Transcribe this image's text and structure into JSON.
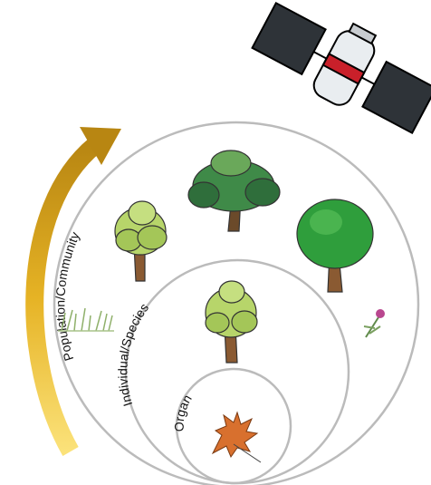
{
  "nodes": [
    {
      "label": "Population/Community"
    },
    {
      "label": "Individual/Species"
    },
    {
      "label": "Organ"
    }
  ]
}
